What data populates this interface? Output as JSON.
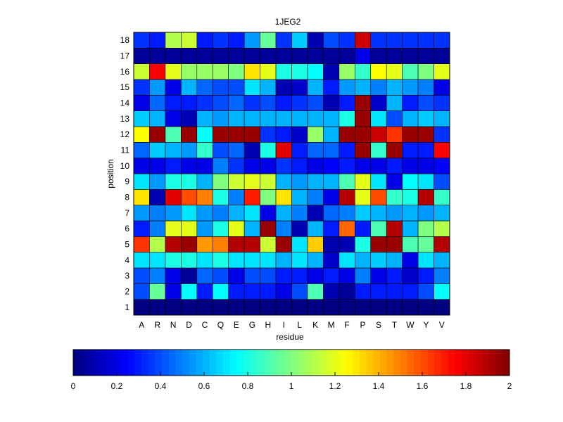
{
  "chart_data": {
    "type": "heatmap",
    "title": "1JEG2",
    "xlabel": "residue",
    "ylabel": "position",
    "x_categories": [
      "A",
      "R",
      "N",
      "D",
      "C",
      "Q",
      "E",
      "G",
      "H",
      "I",
      "L",
      "K",
      "M",
      "F",
      "P",
      "S",
      "T",
      "W",
      "Y",
      "V"
    ],
    "y_categories": [
      1,
      2,
      3,
      4,
      5,
      6,
      7,
      8,
      9,
      10,
      11,
      12,
      13,
      14,
      15,
      16,
      17,
      18
    ],
    "color_range": [
      0,
      2
    ],
    "colormap": "jet",
    "colorbar_ticks": [
      "0",
      "0.2",
      "0.4",
      "0.6",
      "0.8",
      "1",
      "1.2",
      "1.4",
      "1.6",
      "1.8",
      "2"
    ],
    "grid": true,
    "values": [
      [
        0.0,
        0.0,
        0.0,
        0.0,
        0.0,
        0.0,
        0.0,
        0.0,
        0.0,
        0.0,
        0.0,
        0.0,
        0.0,
        0.0,
        0.0,
        0.0,
        0.0,
        0.0,
        0.0,
        0.0
      ],
      [
        0.4,
        0.95,
        0.2,
        0.75,
        0.3,
        0.75,
        0.3,
        0.3,
        0.3,
        0.2,
        0.4,
        0.9,
        0.1,
        0.05,
        0.3,
        0.3,
        0.3,
        0.3,
        0.4,
        0.75
      ],
      [
        0.4,
        0.5,
        0.2,
        0.05,
        0.45,
        0.4,
        0.2,
        0.4,
        0.4,
        0.3,
        0.3,
        0.2,
        0.3,
        0.2,
        0.5,
        0.2,
        0.3,
        0.15,
        0.3,
        0.5
      ],
      [
        0.7,
        0.7,
        0.8,
        0.8,
        0.7,
        0.8,
        0.7,
        0.7,
        0.7,
        0.6,
        0.7,
        0.6,
        0.15,
        0.7,
        0.6,
        0.65,
        0.6,
        0.2,
        0.7,
        0.6
      ],
      [
        1.65,
        1.1,
        1.9,
        1.95,
        1.45,
        1.5,
        1.9,
        1.9,
        1.15,
        1.95,
        0.7,
        1.35,
        0.1,
        0.1,
        0.8,
        1.95,
        1.95,
        0.9,
        0.95,
        1.9
      ],
      [
        0.3,
        0.5,
        1.2,
        1.2,
        0.55,
        0.8,
        1.2,
        0.6,
        1.95,
        0.5,
        0.1,
        0.6,
        0.3,
        1.55,
        0.3,
        0.9,
        1.9,
        0.6,
        1.0,
        1.1
      ],
      [
        0.55,
        0.5,
        0.55,
        0.7,
        0.55,
        0.5,
        0.6,
        0.7,
        0.2,
        0.6,
        0.5,
        0.1,
        0.45,
        0.5,
        0.65,
        0.6,
        0.55,
        0.6,
        0.55,
        0.6
      ],
      [
        1.3,
        0.1,
        1.8,
        1.6,
        1.5,
        0.8,
        0.5,
        1.7,
        1.0,
        1.3,
        0.6,
        0.5,
        0.2,
        1.9,
        1.2,
        1.6,
        0.85,
        0.8,
        1.9,
        0.85
      ],
      [
        0.7,
        0.55,
        0.8,
        0.8,
        0.6,
        1.0,
        1.15,
        1.2,
        1.15,
        0.6,
        0.55,
        0.6,
        0.6,
        0.9,
        1.2,
        0.7,
        0.2,
        0.75,
        0.7,
        0.4
      ],
      [
        0.2,
        0.2,
        0.3,
        0.2,
        0.2,
        0.5,
        0.35,
        0.2,
        0.2,
        0.35,
        0.3,
        0.2,
        0.25,
        0.3,
        0.2,
        0.2,
        0.3,
        0.2,
        0.2,
        0.25
      ],
      [
        0.45,
        0.65,
        0.6,
        0.55,
        0.85,
        0.4,
        0.45,
        0.1,
        0.8,
        1.8,
        0.3,
        0.45,
        0.45,
        0.3,
        1.95,
        0.85,
        1.95,
        0.3,
        0.3,
        1.75
      ],
      [
        1.25,
        1.95,
        0.9,
        1.95,
        0.75,
        1.95,
        1.95,
        1.95,
        0.35,
        0.3,
        0.15,
        1.05,
        0.6,
        1.95,
        1.95,
        1.85,
        1.65,
        1.95,
        1.95,
        0.35
      ],
      [
        0.65,
        0.6,
        0.2,
        0.1,
        0.6,
        0.55,
        0.6,
        0.6,
        0.6,
        0.6,
        0.6,
        0.6,
        0.6,
        0.8,
        1.95,
        0.7,
        0.4,
        0.6,
        0.65,
        0.6
      ],
      [
        0.2,
        0.45,
        0.3,
        0.3,
        0.35,
        0.4,
        0.45,
        0.35,
        0.4,
        0.3,
        0.35,
        0.4,
        0.1,
        0.3,
        1.95,
        0.15,
        0.6,
        0.3,
        0.4,
        0.35
      ],
      [
        0.35,
        0.55,
        0.2,
        0.6,
        0.45,
        0.4,
        0.4,
        0.7,
        0.6,
        0.1,
        0.15,
        0.6,
        0.3,
        0.55,
        0.6,
        0.5,
        0.6,
        0.55,
        0.5,
        0.2
      ],
      [
        1.15,
        1.75,
        1.2,
        1.05,
        1.05,
        1.05,
        1.0,
        1.3,
        1.2,
        0.8,
        0.8,
        0.75,
        0.1,
        1.05,
        0.85,
        1.25,
        1.2,
        0.9,
        1.0,
        1.2
      ],
      [
        0.05,
        0.05,
        0.05,
        0.05,
        0.05,
        0.05,
        0.05,
        0.05,
        0.05,
        0.05,
        0.05,
        0.05,
        0.05,
        0.05,
        0.2,
        0.05,
        0.05,
        0.05,
        0.05,
        0.05
      ],
      [
        0.35,
        0.3,
        1.1,
        1.15,
        0.3,
        0.35,
        0.3,
        0.55,
        0.95,
        0.35,
        0.65,
        0.1,
        0.4,
        0.35,
        1.85,
        0.35,
        0.35,
        0.35,
        0.35,
        0.35
      ]
    ]
  }
}
